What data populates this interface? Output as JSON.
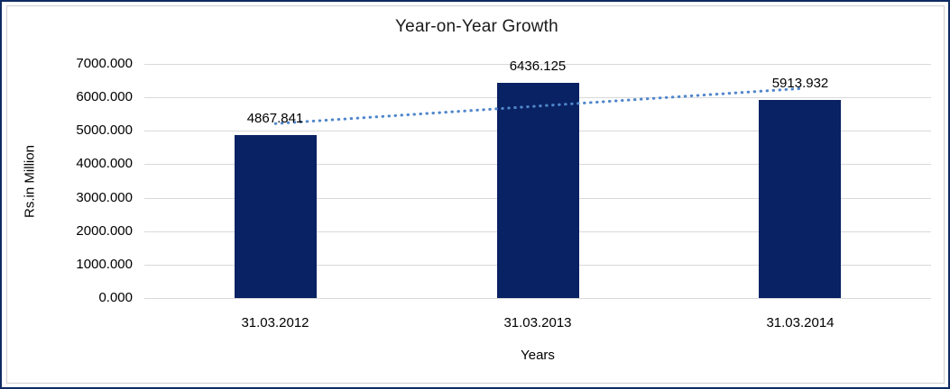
{
  "chart_data": {
    "type": "bar",
    "title": "Year-on-Year Growth",
    "xlabel": "Years",
    "ylabel": "Rs.in Million",
    "categories": [
      "31.03.2012",
      "31.03.2013",
      "31.03.2014"
    ],
    "values": [
      4867.841,
      6436.125,
      5913.932
    ],
    "data_labels": [
      "4867.841",
      "6436.125",
      "5913.932"
    ],
    "y_ticks": [
      "7000.000",
      "6000.000",
      "5000.000",
      "4000.000",
      "3000.000",
      "2000.000",
      "1000.000",
      "0.000"
    ],
    "ylim": [
      0,
      7000
    ],
    "grid": true,
    "legend": "none",
    "trendline": {
      "type": "linear",
      "style": "dotted",
      "start_value": 5216.2,
      "end_value": 6262.4
    },
    "colors": {
      "bar": "#092263",
      "trendline": "#4f86cb",
      "gridline": "#d9d9d9",
      "text": "#000000",
      "frame_border": "#0f2b63",
      "inner_border": "#d0cece",
      "background": "#ffffff"
    }
  }
}
